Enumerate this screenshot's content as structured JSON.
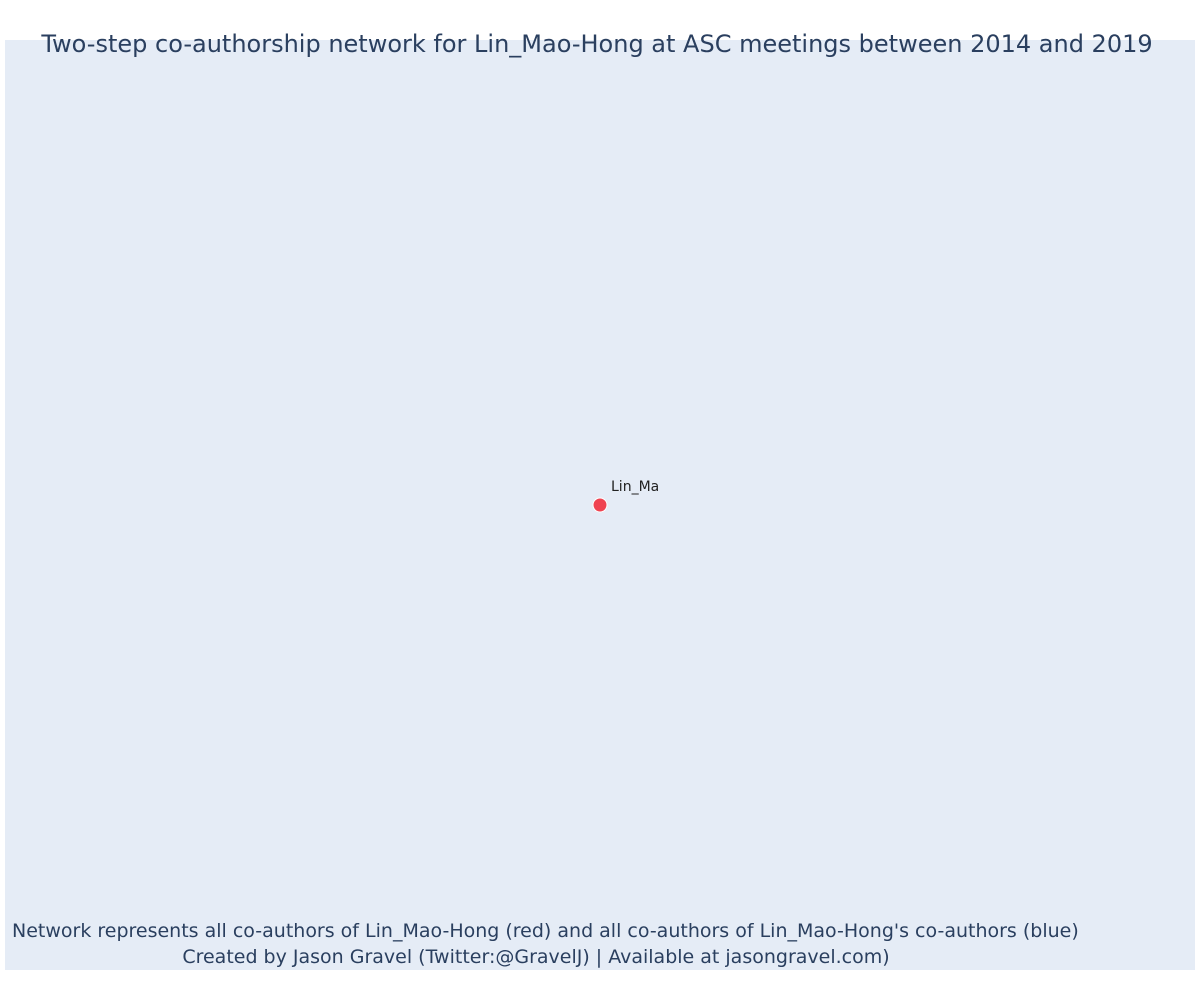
{
  "title": "Two-step co-authorship network for Lin_Mao-Hong at ASC meetings between 2014 and 2019",
  "footnote": {
    "line1": "Network represents all co-authors of Lin_Mao-Hong (red) and all co-authors of Lin_Mao-Hong's co-authors (blue)",
    "line2": "Created by Jason Gravel (Twitter:@GravelJ) | Available at jasongravel.com)"
  },
  "colors": {
    "plot_background": "#e5ecf6",
    "text": "#2a3f5f",
    "focal_node": "#ef4351",
    "node_outline": "#ffffff",
    "node_label": "#222222"
  },
  "chart_data": {
    "type": "scatter",
    "nodes": [
      {
        "label": "Lin_Ma",
        "role": "focal",
        "color": "#ef4351"
      }
    ],
    "edges": []
  }
}
